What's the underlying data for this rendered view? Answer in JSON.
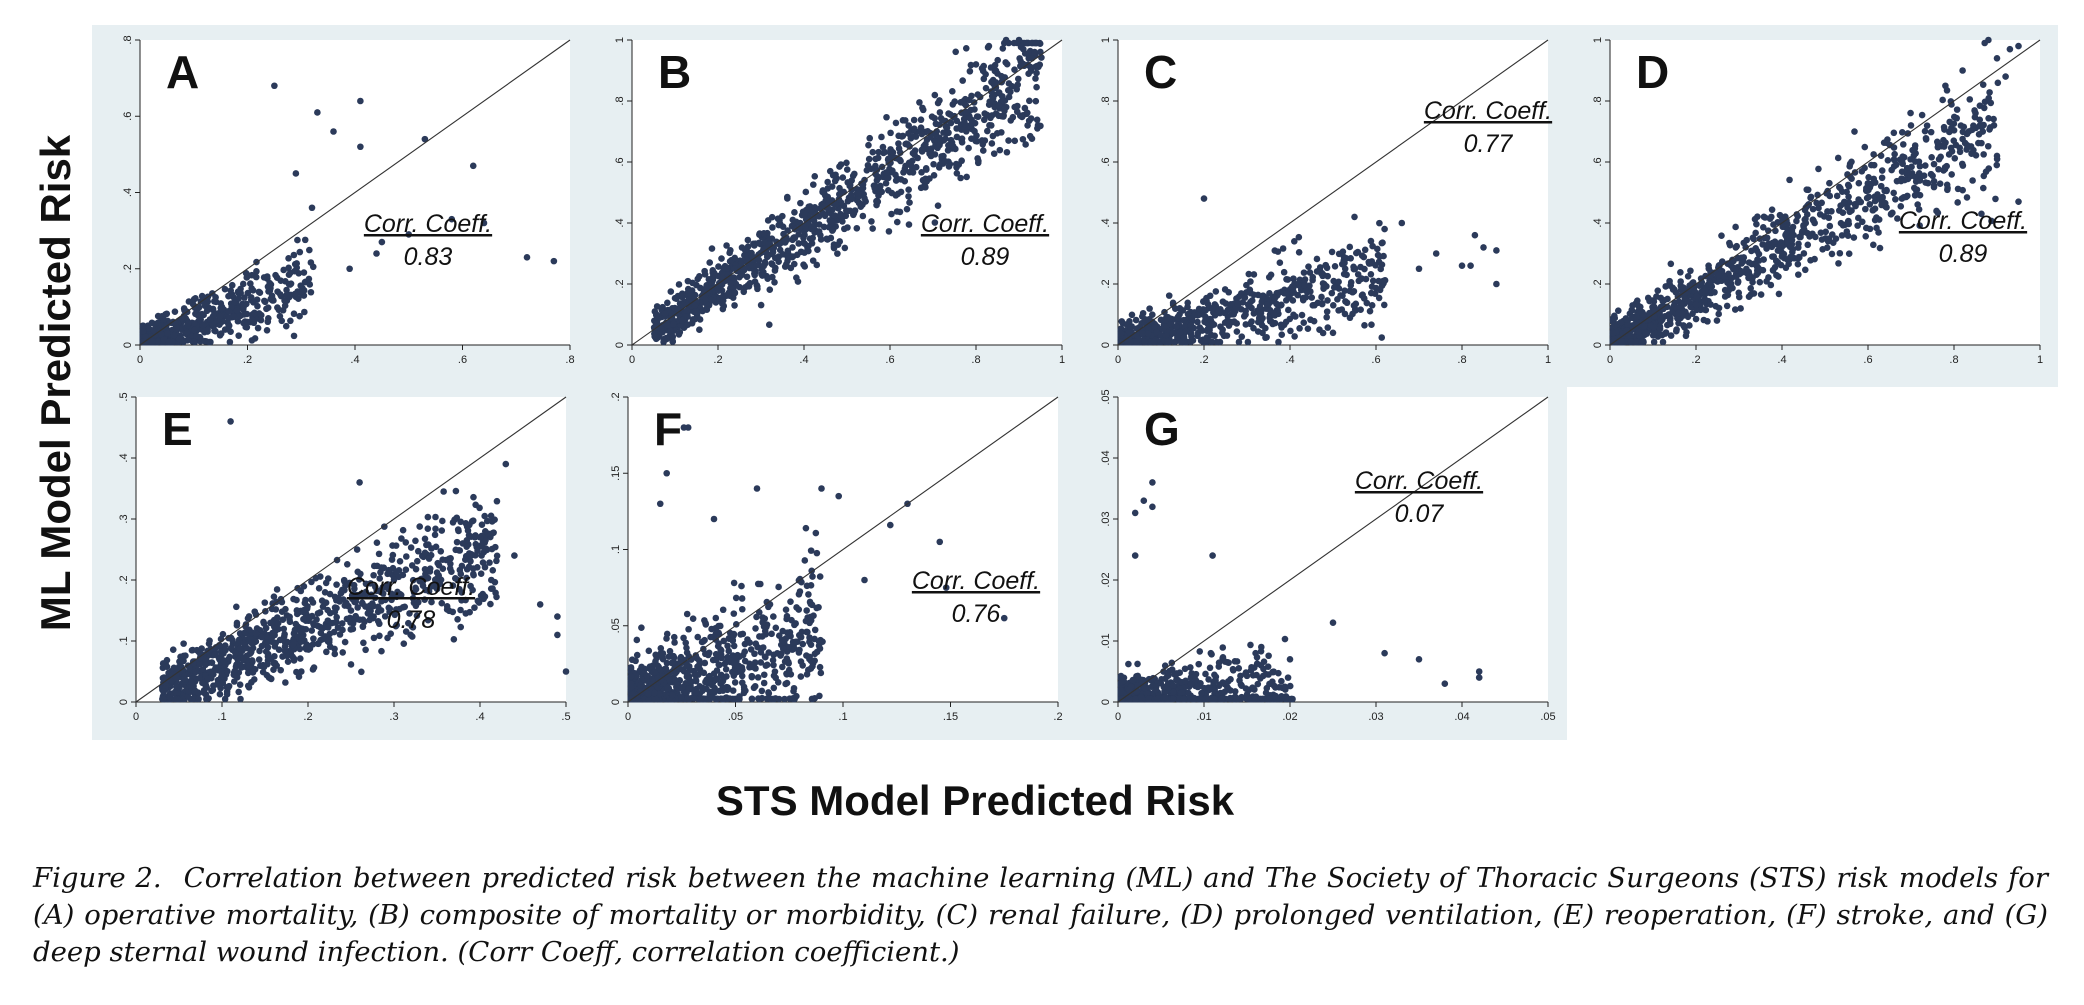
{
  "figure": {
    "y_axis_label": "ML Model Predicted Risk",
    "x_axis_label": "STS Model Predicted Risk",
    "caption": {
      "label": "Figure 2.",
      "text": "Correlation between predicted risk between the machine learning (ML) and The Society of Thoracic Surgeons (STS) risk models for (A) operative mortality, (B) composite of mortality or morbidity, (C) renal failure, (D) prolonged ventilation, (E) reoperation, (F) stroke, and (G) deep sternal wound infection. (Corr Coeff, correlation coefficient.)"
    }
  },
  "colors": {
    "marker": "#2b3a5a",
    "panel_background": "#e7eff2",
    "plot_background": "#ffffff",
    "identity_line": "#333333"
  },
  "chart_data": [
    {
      "type": "scatter",
      "panel": "A",
      "outcome": "operative mortality",
      "corr_label": "Corr. Coeff.",
      "corr_value": "0.83",
      "xlim": [
        0,
        0.8
      ],
      "ylim": [
        0,
        0.8
      ],
      "xticks": [
        0,
        0.2,
        0.4,
        0.6,
        0.8
      ],
      "xtick_labels": [
        "0",
        ".2",
        ".4",
        ".6",
        ".8"
      ],
      "yticks": [
        0,
        0.2,
        0.4,
        0.6,
        0.8
      ],
      "ytick_labels": [
        "0",
        ".2",
        ".4",
        ".6",
        ".8"
      ],
      "reference_line": "y=x",
      "grid": false,
      "cloud": {
        "n": 650,
        "x_max": 0.32,
        "x_skew": 2.4,
        "slope": 0.55,
        "y_sd": 0.035
      },
      "points": [
        [
          0.25,
          0.68
        ],
        [
          0.41,
          0.64
        ],
        [
          0.33,
          0.61
        ],
        [
          0.36,
          0.56
        ],
        [
          0.53,
          0.54
        ],
        [
          0.41,
          0.52
        ],
        [
          0.62,
          0.47
        ],
        [
          0.58,
          0.33
        ],
        [
          0.72,
          0.23
        ],
        [
          0.77,
          0.22
        ],
        [
          0.29,
          0.45
        ],
        [
          0.5,
          0.29
        ],
        [
          0.45,
          0.27
        ],
        [
          0.32,
          0.36
        ],
        [
          0.64,
          0.32
        ],
        [
          0.39,
          0.2
        ],
        [
          0.44,
          0.24
        ]
      ]
    },
    {
      "type": "scatter",
      "panel": "B",
      "outcome": "composite of mortality or morbidity",
      "corr_label": "Corr. Coeff.",
      "corr_value": "0.89",
      "xlim": [
        0,
        1
      ],
      "ylim": [
        0,
        1
      ],
      "xticks": [
        0,
        0.2,
        0.4,
        0.6,
        0.8,
        1
      ],
      "xtick_labels": [
        "0",
        ".2",
        ".4",
        ".6",
        ".8",
        "1"
      ],
      "yticks": [
        0,
        0.2,
        0.4,
        0.6,
        0.8,
        1
      ],
      "ytick_labels": [
        "0",
        ".2",
        ".4",
        ".6",
        ".8",
        "1"
      ],
      "reference_line": "y=x",
      "grid": false,
      "cloud": {
        "n": 1100,
        "x_min": 0.05,
        "x_max": 0.95,
        "x_skew": 1.2,
        "slope": 0.95,
        "y_sd": 0.06
      },
      "points": [
        [
          0.83,
          0.98
        ],
        [
          0.87,
          1.0
        ],
        [
          0.9,
          1.0
        ],
        [
          0.91,
          0.97
        ],
        [
          0.93,
          0.94
        ],
        [
          0.94,
          0.99
        ],
        [
          0.8,
          0.92
        ],
        [
          0.85,
          0.89
        ],
        [
          0.88,
          0.83
        ],
        [
          0.89,
          0.78
        ],
        [
          0.92,
          0.72
        ],
        [
          0.86,
          0.75
        ]
      ]
    },
    {
      "type": "scatter",
      "panel": "C",
      "outcome": "renal failure",
      "corr_label": "Corr. Coeff.",
      "corr_value": "0.77",
      "xlim": [
        0,
        1
      ],
      "ylim": [
        0,
        1
      ],
      "xticks": [
        0,
        0.2,
        0.4,
        0.6,
        0.8,
        1
      ],
      "xtick_labels": [
        "0",
        ".2",
        ".4",
        ".6",
        ".8",
        "1"
      ],
      "yticks": [
        0,
        0.2,
        0.4,
        0.6,
        0.8,
        1
      ],
      "ytick_labels": [
        "0",
        ".2",
        ".4",
        ".6",
        ".8",
        "1"
      ],
      "reference_line": "y=x",
      "grid": false,
      "cloud": {
        "n": 750,
        "x_max": 0.62,
        "x_skew": 2.0,
        "slope": 0.38,
        "y_sd": 0.05
      },
      "points": [
        [
          0.2,
          0.48
        ],
        [
          0.55,
          0.42
        ],
        [
          0.62,
          0.38
        ],
        [
          0.66,
          0.4
        ],
        [
          0.83,
          0.36
        ],
        [
          0.85,
          0.32
        ],
        [
          0.88,
          0.31
        ],
        [
          0.82,
          0.26
        ],
        [
          0.8,
          0.26
        ],
        [
          0.88,
          0.2
        ],
        [
          0.7,
          0.25
        ],
        [
          0.74,
          0.3
        ],
        [
          0.5,
          0.04
        ],
        [
          0.41,
          0.34
        ]
      ]
    },
    {
      "type": "scatter",
      "panel": "D",
      "outcome": "prolonged ventilation",
      "corr_label": "Corr. Coeff.",
      "corr_value": "0.89",
      "xlim": [
        0,
        1
      ],
      "ylim": [
        0,
        1
      ],
      "xticks": [
        0,
        0.2,
        0.4,
        0.6,
        0.8,
        1
      ],
      "xtick_labels": [
        "0",
        ".2",
        ".4",
        ".6",
        ".8",
        "1"
      ],
      "yticks": [
        0,
        0.2,
        0.4,
        0.6,
        0.8,
        1
      ],
      "ytick_labels": [
        "0",
        ".2",
        ".4",
        ".6",
        ".8",
        "1"
      ],
      "reference_line": "y=x",
      "grid": false,
      "cloud": {
        "n": 1000,
        "x_max": 0.9,
        "x_skew": 1.6,
        "slope": 0.82,
        "y_sd": 0.065
      },
      "points": [
        [
          0.88,
          1.0
        ],
        [
          0.93,
          0.97
        ],
        [
          0.95,
          0.98
        ],
        [
          0.9,
          0.94
        ],
        [
          0.82,
          0.9
        ],
        [
          0.78,
          0.85
        ],
        [
          0.92,
          0.88
        ],
        [
          0.85,
          0.76
        ],
        [
          0.9,
          0.62
        ],
        [
          0.95,
          0.47
        ],
        [
          0.7,
          0.72
        ]
      ]
    },
    {
      "type": "scatter",
      "panel": "E",
      "outcome": "reoperation",
      "corr_label": "Corr. Coeff.",
      "corr_value": "0.78",
      "xlim": [
        0,
        0.5
      ],
      "ylim": [
        0,
        0.5
      ],
      "xticks": [
        0,
        0.1,
        0.2,
        0.3,
        0.4,
        0.5
      ],
      "xtick_labels": [
        "0",
        ".1",
        ".2",
        ".3",
        ".4",
        ".5"
      ],
      "yticks": [
        0,
        0.1,
        0.2,
        0.3,
        0.4,
        0.5
      ],
      "ytick_labels": [
        "0",
        ".1",
        ".2",
        ".3",
        ".4",
        ".5"
      ],
      "reference_line": "y=x",
      "grid": false,
      "cloud": {
        "n": 950,
        "x_min": 0.03,
        "x_max": 0.42,
        "x_skew": 1.3,
        "slope": 0.62,
        "y_sd": 0.035
      },
      "points": [
        [
          0.11,
          0.46
        ],
        [
          0.43,
          0.39
        ],
        [
          0.38,
          0.26
        ],
        [
          0.4,
          0.27
        ],
        [
          0.44,
          0.24
        ],
        [
          0.47,
          0.16
        ],
        [
          0.49,
          0.14
        ],
        [
          0.5,
          0.05
        ],
        [
          0.49,
          0.11
        ],
        [
          0.26,
          0.36
        ]
      ]
    },
    {
      "type": "scatter",
      "panel": "F",
      "outcome": "stroke",
      "corr_label": "Corr. Coeff.",
      "corr_value": "0.76",
      "xlim": [
        0,
        0.2
      ],
      "ylim": [
        0,
        0.2
      ],
      "xticks": [
        0,
        0.05,
        0.1,
        0.15,
        0.2
      ],
      "xtick_labels": [
        "0",
        ".05",
        ".1",
        ".15",
        ".2"
      ],
      "yticks": [
        0,
        0.05,
        0.1,
        0.15,
        0.2
      ],
      "ytick_labels": [
        "0",
        ".05",
        ".1",
        ".15",
        ".2"
      ],
      "reference_line": "y=x",
      "grid": false,
      "cloud": {
        "n": 850,
        "x_max": 0.09,
        "x_skew": 1.8,
        "slope": 0.5,
        "y_sd": 0.018
      },
      "points": [
        [
          0.026,
          0.18
        ],
        [
          0.028,
          0.18
        ],
        [
          0.018,
          0.15
        ],
        [
          0.015,
          0.13
        ],
        [
          0.09,
          0.14
        ],
        [
          0.098,
          0.135
        ],
        [
          0.13,
          0.13
        ],
        [
          0.122,
          0.116
        ],
        [
          0.145,
          0.105
        ],
        [
          0.148,
          0.075
        ],
        [
          0.175,
          0.055
        ],
        [
          0.11,
          0.08
        ],
        [
          0.06,
          0.14
        ],
        [
          0.04,
          0.12
        ]
      ]
    },
    {
      "type": "scatter",
      "panel": "G",
      "outcome": "deep sternal wound infection",
      "corr_label": "Corr. Coeff.",
      "corr_value": "0.07",
      "xlim": [
        0,
        0.05
      ],
      "ylim": [
        0,
        0.05
      ],
      "xticks": [
        0,
        0.01,
        0.02,
        0.03,
        0.04,
        0.05
      ],
      "xtick_labels": [
        "0",
        ".01",
        ".02",
        ".03",
        ".04",
        ".05"
      ],
      "yticks": [
        0,
        0.01,
        0.02,
        0.03,
        0.04,
        0.05
      ],
      "ytick_labels": [
        "0",
        ".01",
        ".02",
        ".03",
        ".04",
        ".05"
      ],
      "reference_line": "y=x",
      "grid": false,
      "cloud": {
        "n": 800,
        "x_max": 0.02,
        "x_skew": 2.3,
        "slope": 0.05,
        "y_sd": 0.0028
      },
      "points": [
        [
          0.004,
          0.036
        ],
        [
          0.003,
          0.033
        ],
        [
          0.002,
          0.031
        ],
        [
          0.004,
          0.032
        ],
        [
          0.002,
          0.024
        ],
        [
          0.011,
          0.024
        ],
        [
          0.025,
          0.013
        ],
        [
          0.031,
          0.008
        ],
        [
          0.035,
          0.007
        ],
        [
          0.042,
          0.005
        ],
        [
          0.042,
          0.004
        ],
        [
          0.038,
          0.003
        ],
        [
          0.02,
          0.007
        ],
        [
          0.016,
          0.008
        ]
      ]
    }
  ]
}
